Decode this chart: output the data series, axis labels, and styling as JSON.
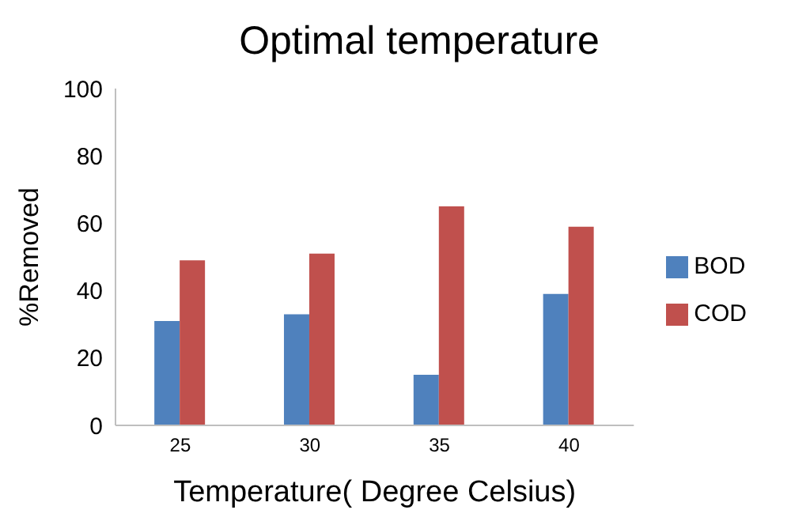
{
  "chart_data": {
    "type": "bar",
    "title": "Optimal temperature",
    "xlabel": "Temperature( Degree Celsius)",
    "ylabel": "%Removed",
    "categories": [
      "25",
      "30",
      "35",
      "40"
    ],
    "series": [
      {
        "name": "BOD",
        "color": "#4f81bd",
        "values": [
          31,
          33,
          15,
          39
        ]
      },
      {
        "name": "COD",
        "color": "#c0504d",
        "values": [
          49,
          51,
          65,
          59
        ]
      }
    ],
    "ylim": [
      0,
      100
    ],
    "yticks": [
      0,
      20,
      40,
      60,
      80,
      100
    ],
    "grid": false,
    "legend": "right"
  }
}
